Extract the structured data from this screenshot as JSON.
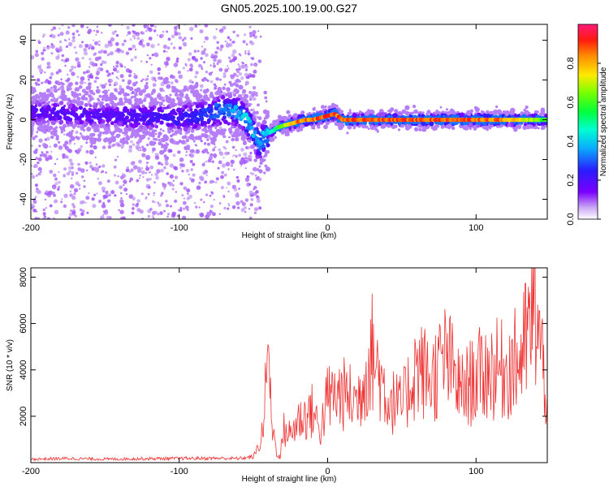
{
  "title": "GN05.2025.100.19.00.G27",
  "chart_data": [
    {
      "type": "heatmap",
      "xlabel": "Height of straight line (km)",
      "ylabel": "Frequency (Hz)",
      "xlim": [
        -200,
        148
      ],
      "ylim": [
        -50,
        48
      ],
      "xticks": [
        "-200",
        "-100",
        "0",
        "100"
      ],
      "yticks": [
        "-40",
        "-20",
        "0",
        "20",
        "40"
      ],
      "colorbar": {
        "label": "Normalized spectral amplitude",
        "range": [
          0,
          1
        ],
        "ticks": [
          "0.0",
          "0.2",
          "0.4",
          "0.6",
          "0.8"
        ]
      },
      "ridge": {
        "x": [
          -200,
          -150,
          -100,
          -80,
          -70,
          -60,
          -55,
          -50,
          -46,
          -42,
          -38,
          -34,
          -30,
          -25,
          -20,
          -15,
          -10,
          -5,
          0,
          5,
          10,
          20,
          40,
          60,
          80,
          100,
          120,
          140,
          148
        ],
        "freq": [
          4,
          2,
          1,
          3,
          5,
          4,
          0,
          -6,
          -13,
          -8,
          -6,
          -4,
          -3,
          -2,
          -1,
          0,
          0,
          1,
          2,
          3,
          0,
          0,
          0,
          0,
          0,
          0,
          0,
          0,
          0
        ],
        "peak_amplitude": [
          0.2,
          0.2,
          0.25,
          0.3,
          0.35,
          0.4,
          0.45,
          0.4,
          0.4,
          0.45,
          0.5,
          0.6,
          0.7,
          0.8,
          0.9,
          0.9,
          0.9,
          0.95,
          0.95,
          0.95,
          0.95,
          0.95,
          0.95,
          0.95,
          0.95,
          0.95,
          0.9,
          0.7,
          0.6
        ]
      }
    },
    {
      "type": "line",
      "xlabel": "Height of straight line (km)",
      "ylabel": "SNR (10 * v/v)",
      "xlim": [
        -200,
        148
      ],
      "ylim": [
        0,
        8400
      ],
      "xticks": [
        "-200",
        "-100",
        "0",
        "100"
      ],
      "yticks": [
        "2000",
        "4000",
        "6000",
        "8000"
      ],
      "color": "#ee3333",
      "series": [
        {
          "x": [
            -200,
            -175,
            -150,
            -125,
            -100,
            -75,
            -60,
            -50,
            -45,
            -40,
            -38,
            -35,
            -32,
            -30,
            -25,
            -20,
            -15,
            -10,
            -5,
            0,
            10,
            20,
            30,
            40,
            50,
            60,
            70,
            80,
            90,
            100,
            110,
            120,
            130,
            140,
            148
          ],
          "values": [
            150,
            180,
            150,
            170,
            180,
            190,
            180,
            250,
            900,
            5300,
            2500,
            800,
            200,
            1800,
            1500,
            2300,
            2500,
            2800,
            1700,
            3500,
            3700,
            3300,
            6000,
            3500,
            3000,
            5200,
            4500,
            5700,
            3800,
            4600,
            5000,
            5000,
            5600,
            8200,
            3500
          ]
        }
      ]
    }
  ]
}
